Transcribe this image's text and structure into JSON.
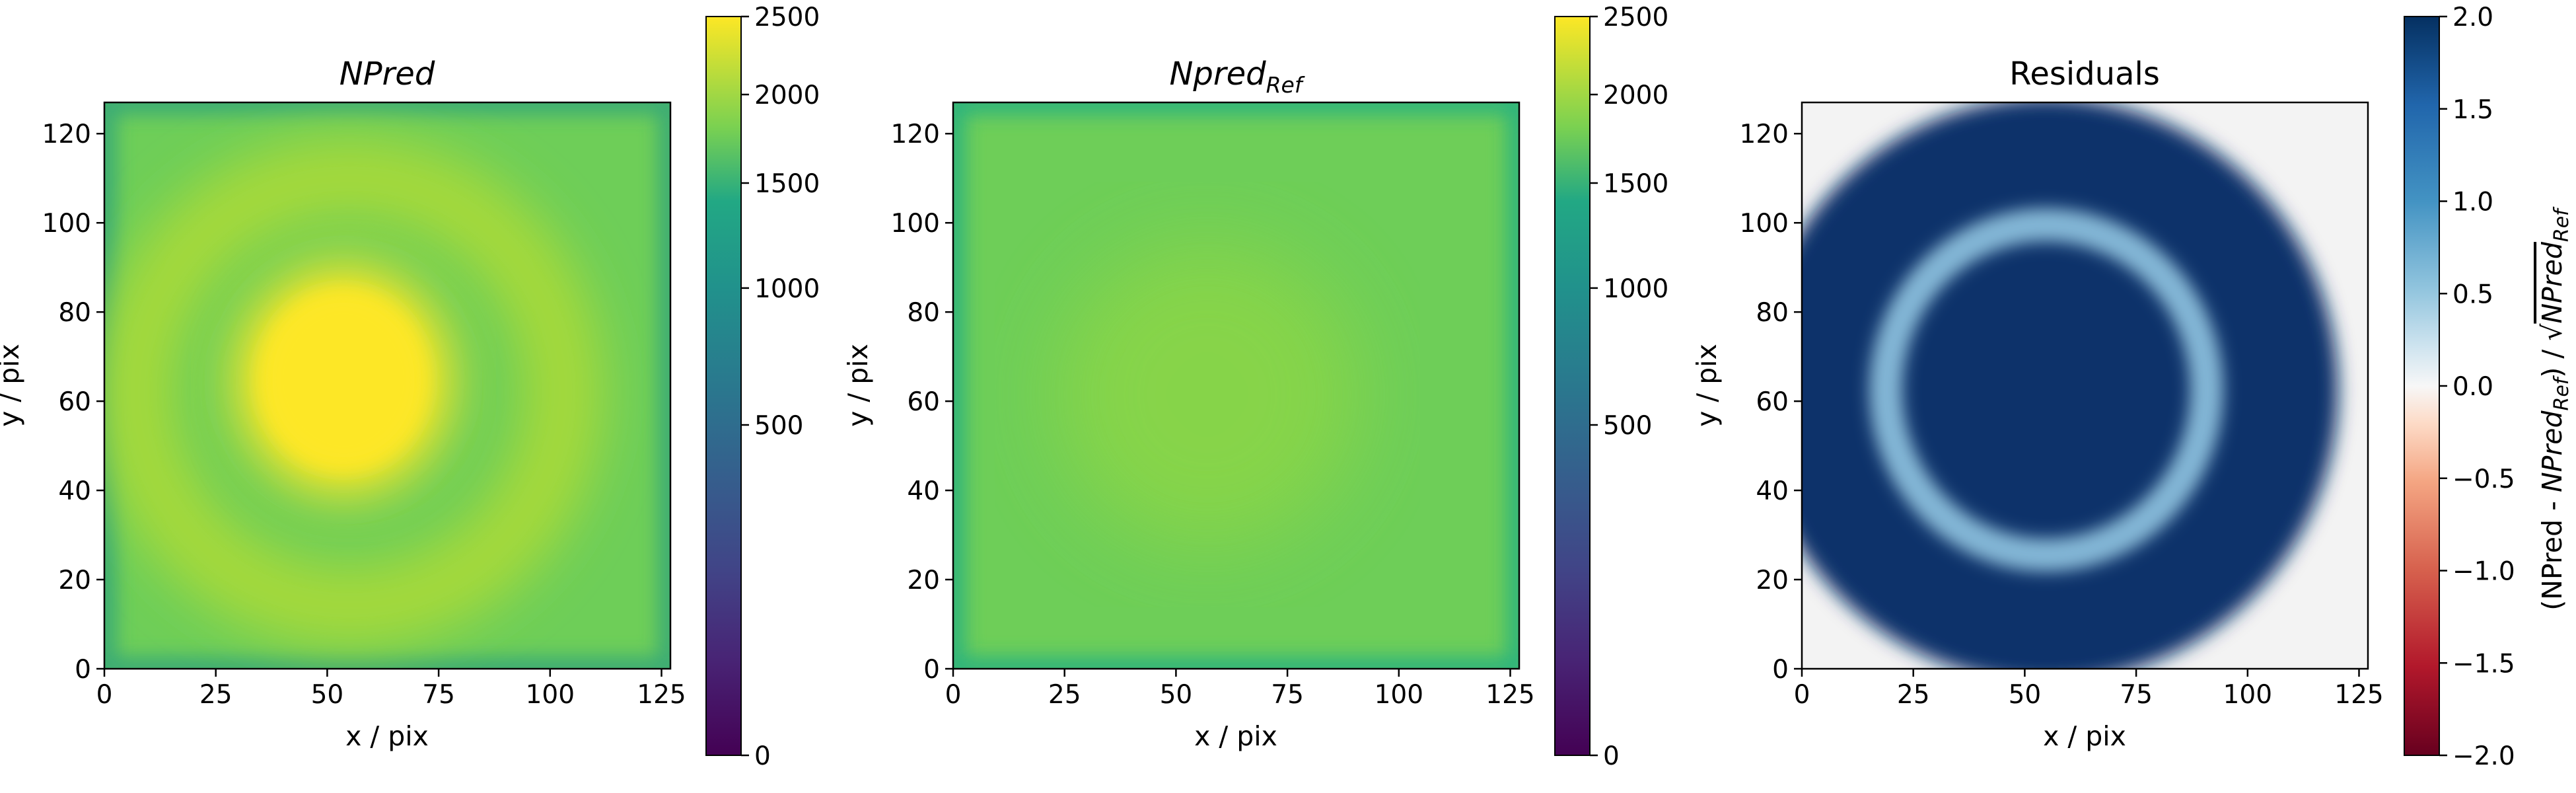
{
  "chart_data": [
    {
      "type": "heatmap",
      "title_parts": {
        "main": "NPred",
        "sub": ""
      },
      "title_italic": true,
      "xlabel": "x / pix",
      "ylabel": "y / pix",
      "xlim": [
        0,
        127
      ],
      "ylim": [
        0,
        127
      ],
      "xticks": [
        "0",
        "25",
        "50",
        "75",
        "100",
        "125"
      ],
      "yticks": [
        "0",
        "20",
        "40",
        "60",
        "80",
        "100",
        "120"
      ],
      "colormap": "viridis",
      "colorbar": {
        "range": [
          0,
          2500
        ],
        "scale": "sqrt",
        "ticks": [
          "0",
          "500",
          "1000",
          "1500",
          "2000",
          "2500"
        ]
      },
      "features": {
        "center": [
          55,
          65
        ],
        "core_radius": 20,
        "core_value": 2500,
        "ring_radius": 48,
        "ring_value": 1800,
        "background": 1100
      }
    },
    {
      "type": "heatmap",
      "title_parts": {
        "main": "Npred",
        "sub": "Ref"
      },
      "title_italic": true,
      "xlabel": "x / pix",
      "ylabel": "y / pix",
      "xlim": [
        0,
        127
      ],
      "ylim": [
        0,
        127
      ],
      "xticks": [
        "0",
        "25",
        "50",
        "75",
        "100",
        "125"
      ],
      "yticks": [
        "0",
        "20",
        "40",
        "60",
        "80",
        "100",
        "120"
      ],
      "colormap": "viridis",
      "colorbar": {
        "range": [
          0,
          2500
        ],
        "scale": "sqrt",
        "ticks": [
          "0",
          "500",
          "1000",
          "1500",
          "2000",
          "2500"
        ]
      },
      "features": {
        "center": [
          57,
          62
        ],
        "core_value": 1600,
        "background": 1300
      }
    },
    {
      "type": "heatmap",
      "title_parts": {
        "main": "Residuals",
        "sub": ""
      },
      "title_italic": false,
      "xlabel": "x / pix",
      "ylabel": "y / pix",
      "xlim": [
        0,
        127
      ],
      "ylim": [
        0,
        127
      ],
      "xticks": [
        "0",
        "25",
        "50",
        "75",
        "100",
        "125"
      ],
      "yticks": [
        "0",
        "20",
        "40",
        "60",
        "80",
        "100",
        "120"
      ],
      "colormap": "RdBu",
      "colorbar": {
        "range": [
          -2.0,
          2.0
        ],
        "ticks": [
          "−2.0",
          "−1.5",
          "−1.0",
          "−0.5",
          "0.0",
          "0.5",
          "1.0",
          "1.5",
          "2.0"
        ],
        "label_parts": [
          "(NPred - ",
          "NPred",
          "Ref",
          ") / √",
          "NPred",
          "Ref"
        ]
      },
      "features": {
        "disk_center": [
          55,
          63
        ],
        "disk_radius": 66,
        "ring_radius": 36,
        "ring_value": 0.8
      }
    }
  ]
}
